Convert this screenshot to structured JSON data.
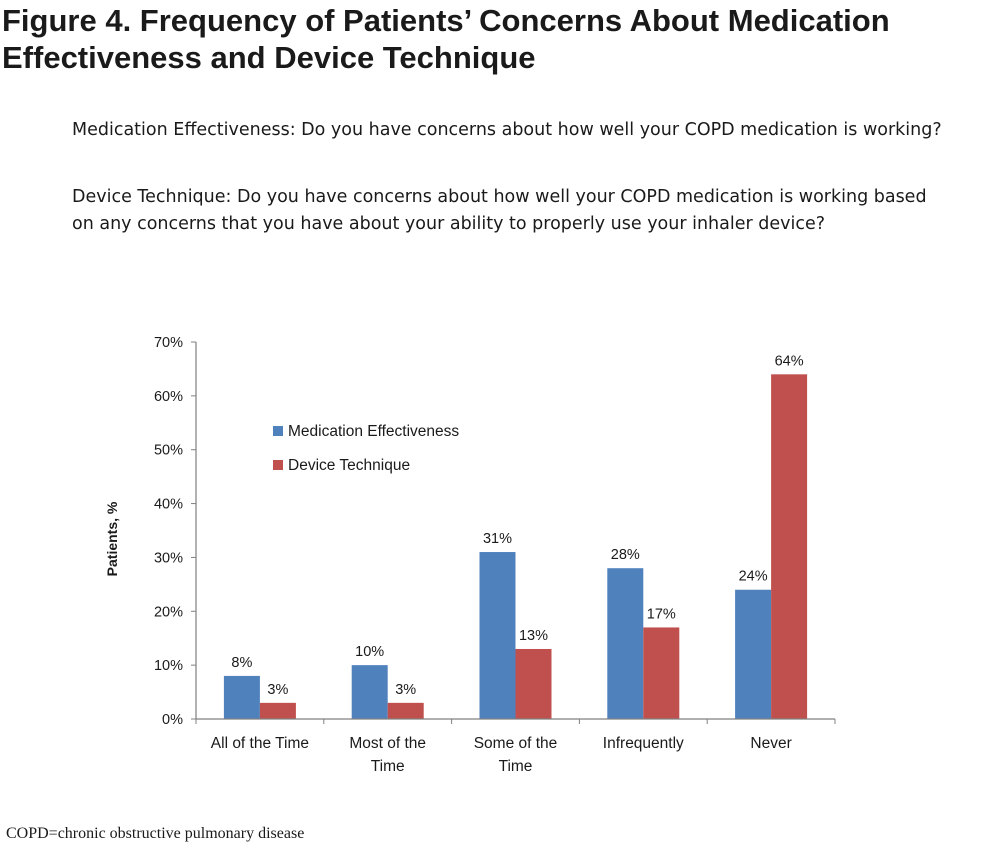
{
  "figure_title": "Figure 4. Frequency of Patients’ Concerns About Medication Effectiveness and Device Technique",
  "questions": {
    "medication": "Medication Effectiveness: Do you have concerns about how well your COPD medication is working?",
    "device": "Device Technique: Do you have concerns about how well your COPD medication is working based on any concerns that you have about your ability to properly use your inhaler device?"
  },
  "footnote": "COPD=chronic obstructive pulmonary disease",
  "chart_data": {
    "type": "bar",
    "categories": [
      [
        "All of the Time"
      ],
      [
        "Most of the",
        "Time"
      ],
      [
        "Some of the",
        "Time"
      ],
      [
        "Infrequently"
      ],
      [
        "Never"
      ]
    ],
    "series": [
      {
        "name": "Medication Effectiveness",
        "values": [
          8,
          10,
          31,
          28,
          24
        ],
        "labels": [
          "8%",
          "10%",
          "31%",
          "28%",
          "24%"
        ],
        "color": "#4f81bd"
      },
      {
        "name": "Device Technique",
        "values": [
          3,
          3,
          13,
          17,
          64
        ],
        "labels": [
          "3%",
          "3%",
          "13%",
          "17%",
          "64%"
        ],
        "color": "#c0504d"
      }
    ],
    "ylabel": "Patients, %",
    "ylim": [
      0,
      70
    ],
    "yticks": [
      0,
      10,
      20,
      30,
      40,
      50,
      60,
      70
    ],
    "ytick_labels": [
      "0%",
      "10%",
      "20%",
      "30%",
      "40%",
      "50%",
      "60%",
      "70%"
    ],
    "grid": false,
    "legend_position": "upper-left inside plot"
  }
}
